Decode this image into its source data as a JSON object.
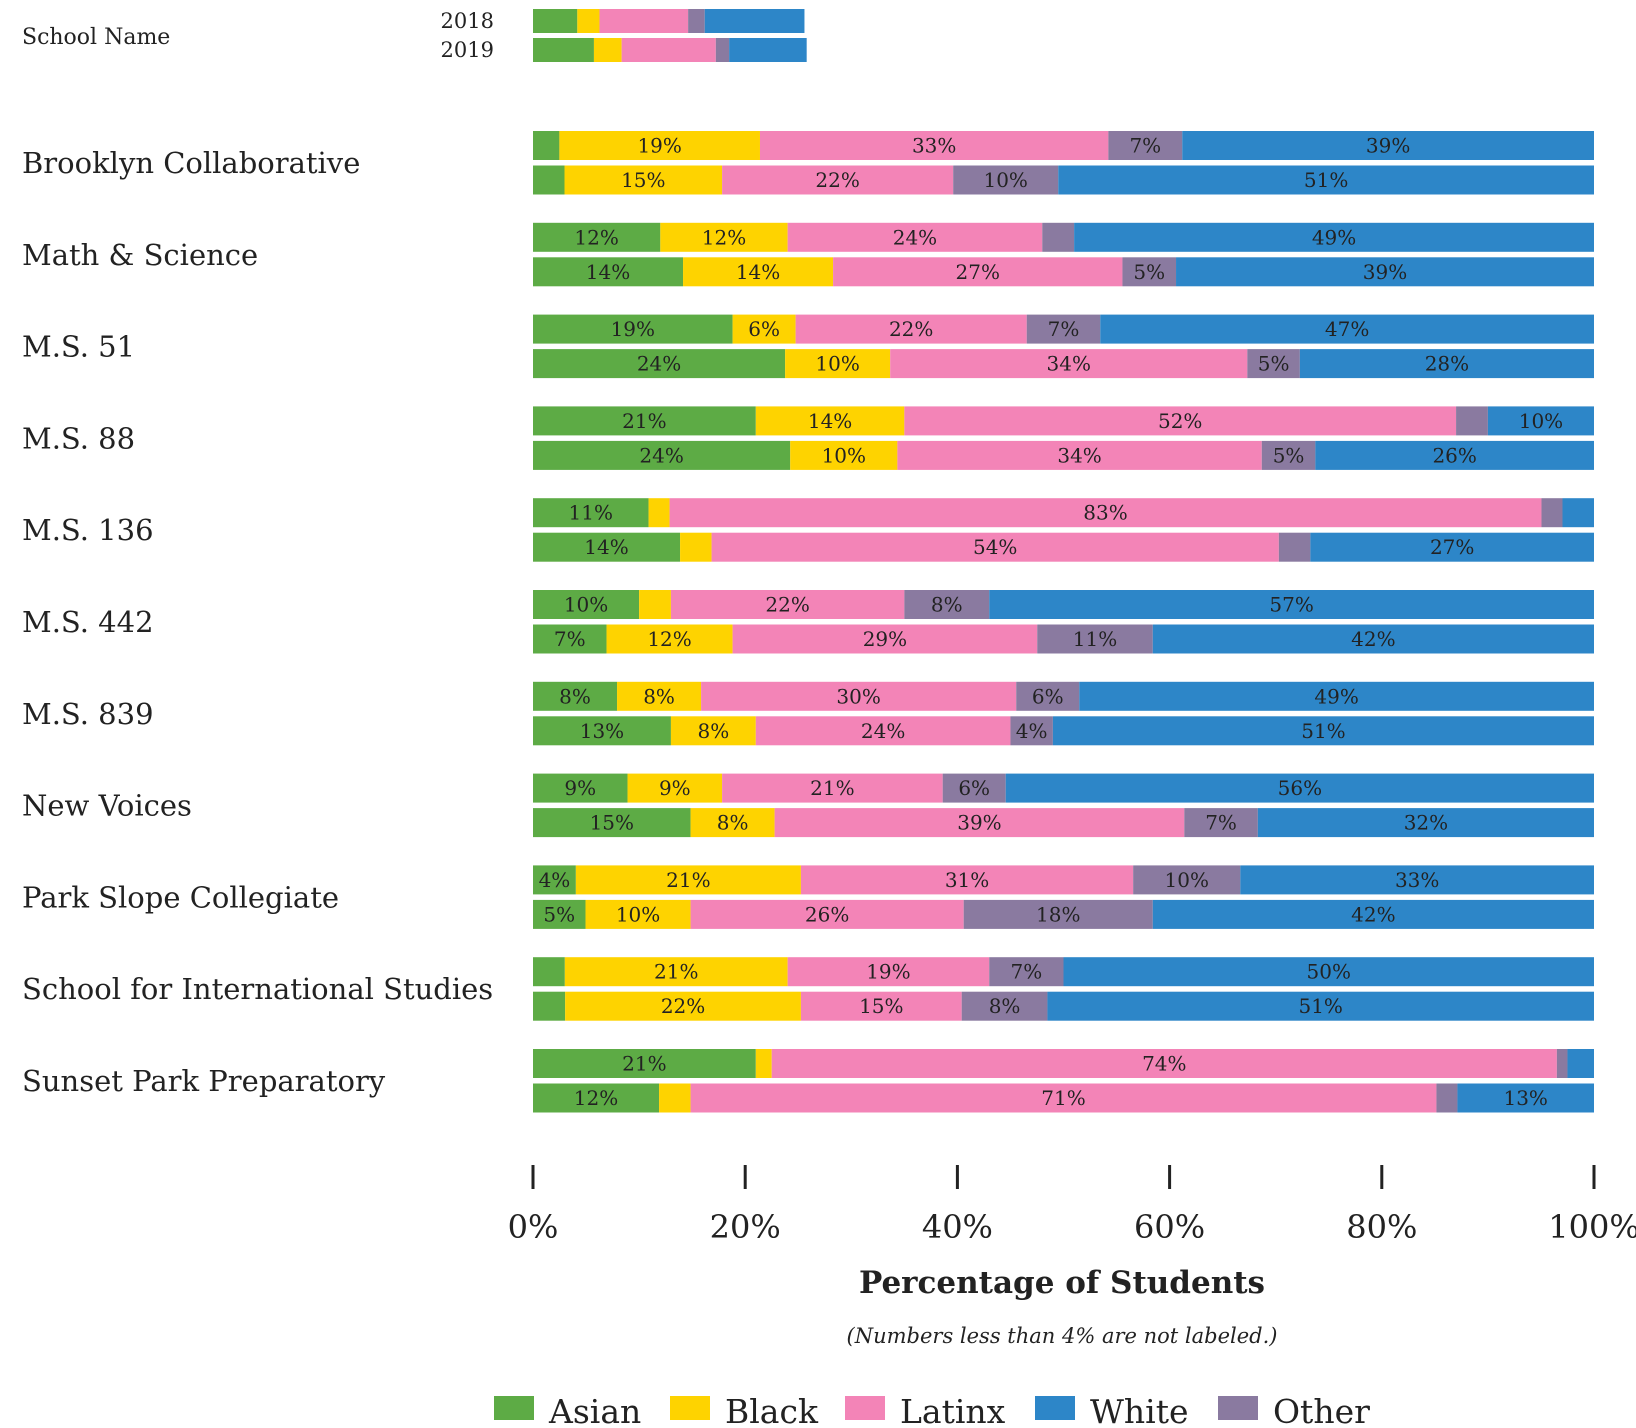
{
  "chart_data": {
    "type": "bar",
    "orientation": "horizontal",
    "stacked": true,
    "xlabel": "Percentage of Students",
    "note": "(Numbers less than 4% are not labeled.)",
    "xlim": [
      0,
      100
    ],
    "xticks": [
      "0%",
      "20%",
      "40%",
      "60%",
      "80%",
      "100%"
    ],
    "key": {
      "header": "School Name",
      "years": [
        "2018",
        "2019"
      ]
    },
    "series": [
      {
        "name": "Asian",
        "color": "#5dab45"
      },
      {
        "name": "Black",
        "color": "#fed300"
      },
      {
        "name": "Latinx",
        "color": "#f384b7"
      },
      {
        "name": "White",
        "color": "#2d86c8"
      },
      {
        "name": "Other",
        "color": "#8a7aa0"
      }
    ],
    "legend_position": "bottom",
    "schools": [
      {
        "name": "Brooklyn Collaborative",
        "years": [
          {
            "year": "2018",
            "Asian": 2.5,
            "Black": 19,
            "Latinx": 33,
            "Other": 7,
            "White": 39
          },
          {
            "year": "2019",
            "Asian": 3,
            "Black": 15,
            "Latinx": 22,
            "Other": 10,
            "White": 51
          }
        ]
      },
      {
        "name": "Math & Science",
        "years": [
          {
            "year": "2018",
            "Asian": 12,
            "Black": 12,
            "Latinx": 24,
            "Other": 3,
            "White": 49
          },
          {
            "year": "2019",
            "Asian": 14,
            "Black": 14,
            "Latinx": 27,
            "Other": 5,
            "White": 39
          }
        ]
      },
      {
        "name": "M.S. 51",
        "years": [
          {
            "year": "2018",
            "Asian": 19,
            "Black": 6,
            "Latinx": 22,
            "Other": 7,
            "White": 47
          },
          {
            "year": "2019",
            "Asian": 24,
            "Black": 10,
            "Latinx": 34,
            "Other": 5,
            "White": 28
          }
        ]
      },
      {
        "name": "M.S. 88",
        "years": [
          {
            "year": "2018",
            "Asian": 21,
            "Black": 14,
            "Latinx": 52,
            "Other": 3,
            "White": 10
          },
          {
            "year": "2019",
            "Asian": 24,
            "Black": 10,
            "Latinx": 34,
            "Other": 5,
            "White": 26
          }
        ]
      },
      {
        "name": "M.S. 136",
        "years": [
          {
            "year": "2018",
            "Asian": 11,
            "Black": 2,
            "Latinx": 83,
            "Other": 2,
            "White": 3
          },
          {
            "year": "2019",
            "Asian": 14,
            "Black": 3,
            "Latinx": 54,
            "Other": 3,
            "White": 27
          }
        ]
      },
      {
        "name": "M.S. 442",
        "years": [
          {
            "year": "2018",
            "Asian": 10,
            "Black": 3,
            "Latinx": 22,
            "Other": 8,
            "White": 57
          },
          {
            "year": "2019",
            "Asian": 7,
            "Black": 12,
            "Latinx": 29,
            "Other": 11,
            "White": 42
          }
        ]
      },
      {
        "name": "M.S. 839",
        "years": [
          {
            "year": "2018",
            "Asian": 8,
            "Black": 8,
            "Latinx": 30,
            "Other": 6,
            "White": 49
          },
          {
            "year": "2019",
            "Asian": 13,
            "Black": 8,
            "Latinx": 24,
            "Other": 4,
            "White": 51
          }
        ]
      },
      {
        "name": "New Voices",
        "years": [
          {
            "year": "2018",
            "Asian": 9,
            "Black": 9,
            "Latinx": 21,
            "Other": 6,
            "White": 56
          },
          {
            "year": "2019",
            "Asian": 15,
            "Black": 8,
            "Latinx": 39,
            "Other": 7,
            "White": 32
          }
        ]
      },
      {
        "name": "Park Slope Collegiate",
        "years": [
          {
            "year": "2018",
            "Asian": 4,
            "Black": 21,
            "Latinx": 31,
            "Other": 10,
            "White": 33
          },
          {
            "year": "2019",
            "Asian": 5,
            "Black": 10,
            "Latinx": 26,
            "Other": 18,
            "White": 42
          }
        ]
      },
      {
        "name": "School for International Studies",
        "years": [
          {
            "year": "2018",
            "Asian": 3,
            "Black": 21,
            "Latinx": 19,
            "Other": 7,
            "White": 50
          },
          {
            "year": "2019",
            "Asian": 3,
            "Black": 22,
            "Latinx": 15,
            "Other": 8,
            "White": 51
          }
        ]
      },
      {
        "name": "Sunset Park Preparatory",
        "years": [
          {
            "year": "2018",
            "Asian": 21,
            "Black": 1.5,
            "Latinx": 74,
            "Other": 1,
            "White": 2.5
          },
          {
            "year": "2019",
            "Asian": 12,
            "Black": 3,
            "Latinx": 71,
            "Other": 2,
            "White": 13
          }
        ]
      }
    ],
    "key_sample": [
      {
        "year": "2018",
        "Asian": 4,
        "Black": 2,
        "Latinx": 8,
        "Other": 1.5,
        "White": 9
      },
      {
        "year": "2019",
        "Asian": 5.5,
        "Black": 2.5,
        "Latinx": 8.5,
        "Other": 1.2,
        "White": 7
      }
    ]
  }
}
